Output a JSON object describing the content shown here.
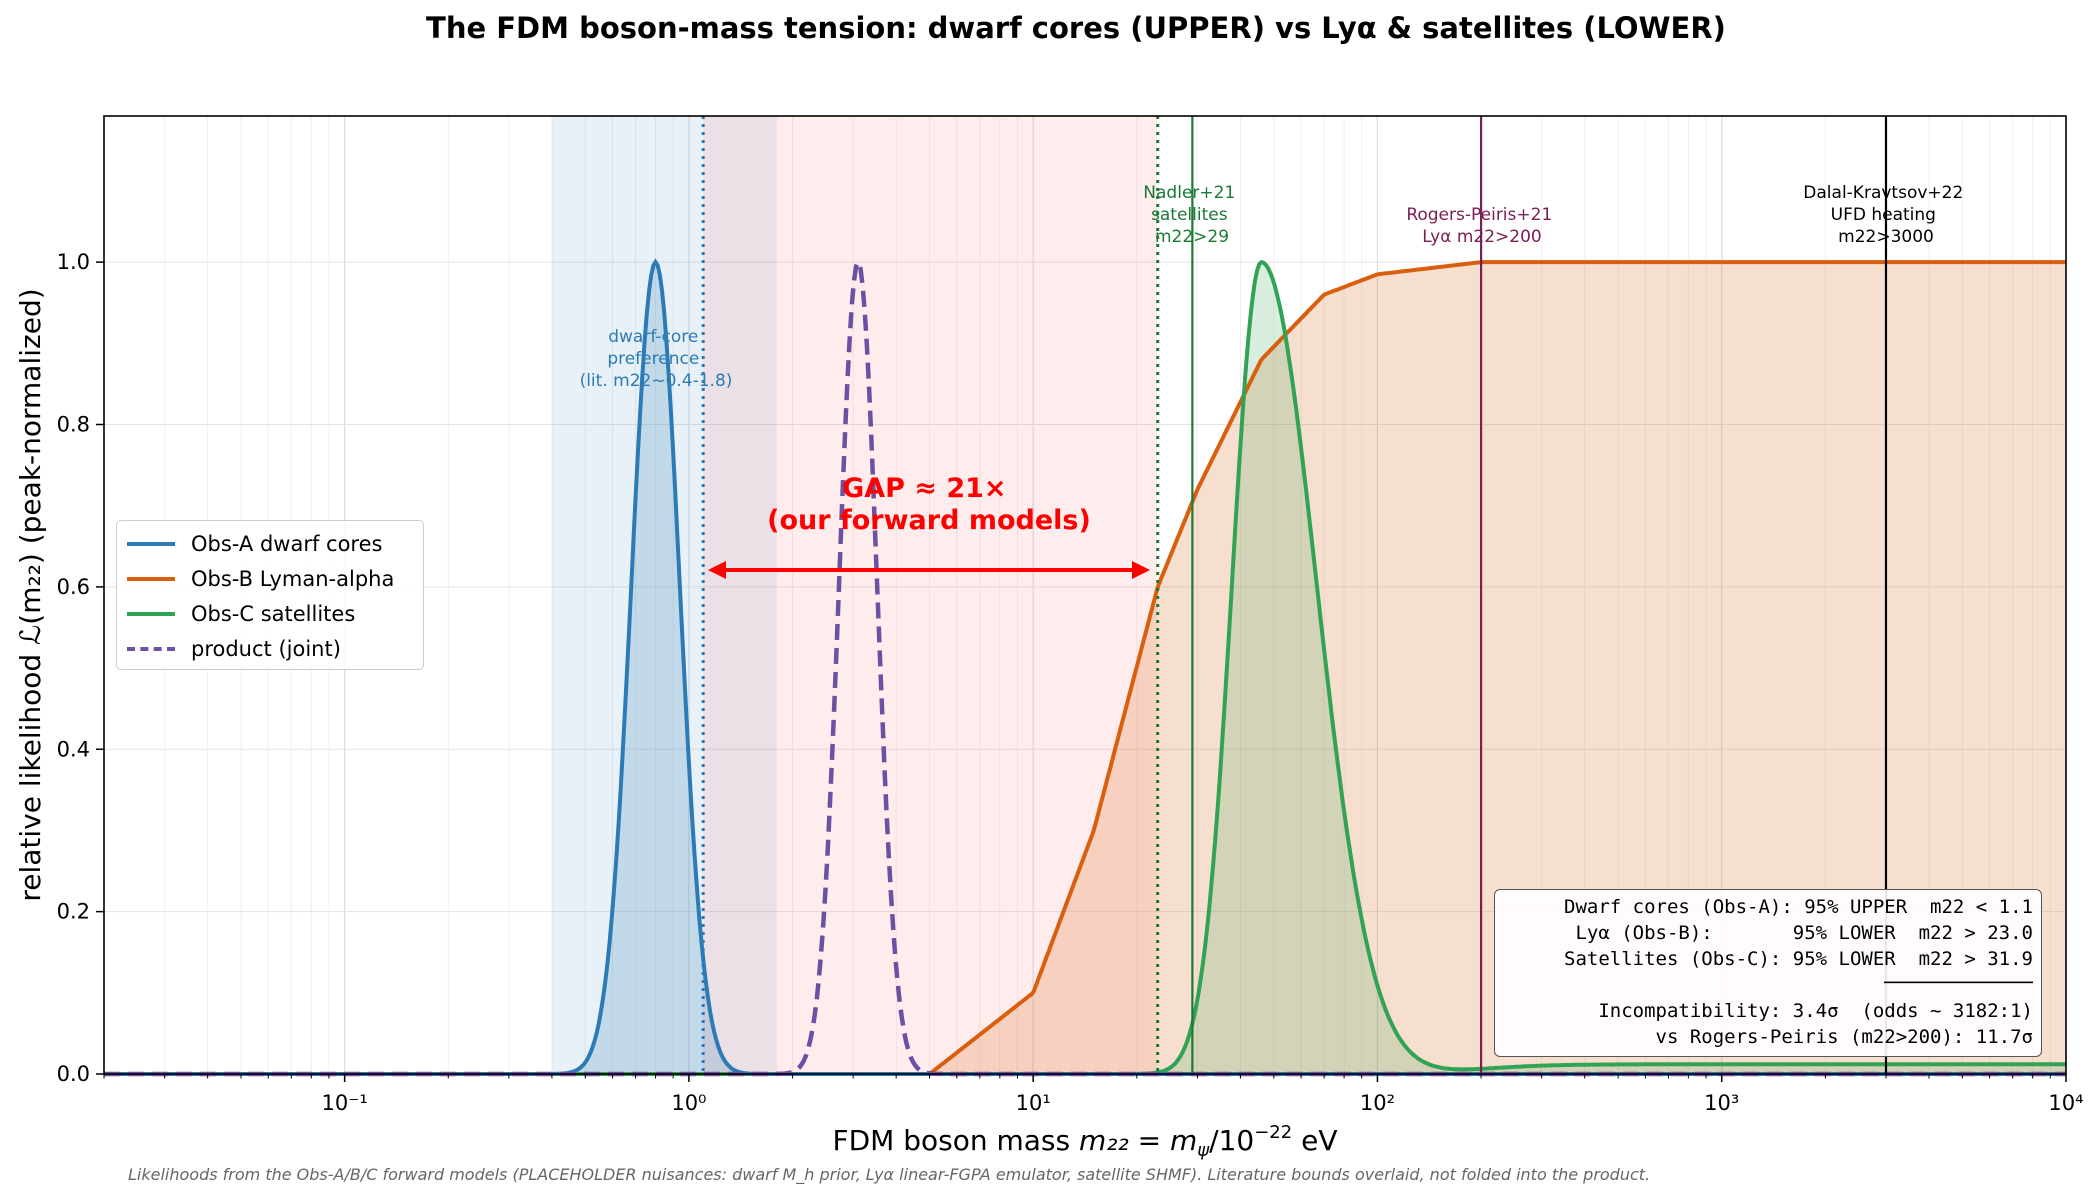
{
  "title": "The FDM boson-mass tension: dwarf cores (UPPER) vs Lyα & satellites (LOWER)",
  "footnote": "Likelihoods from the Obs-A/B/C forward models (PLACEHOLDER nuisances: dwarf M_h prior, Lyα linear-FGPA emulator, satellite SHMF). Literature bounds overlaid, not folded into the product.",
  "axes": {
    "xlabel_prefix": "FDM boson mass  ",
    "xlabel_math": "m₂₂ = m",
    "xlabel_psi": "ψ",
    "xlabel_rest": "/10",
    "xlabel_exp": "−22",
    "xlabel_unit": " eV",
    "ylabel": "relative likelihood  ℒ(m₂₂) (peak-normalized)"
  },
  "legend": [
    {
      "label": "Obs-A dwarf cores",
      "color": "#2c7bb6",
      "dash": false
    },
    {
      "label": "Obs-B Lyman-alpha",
      "color": "#d95f0e",
      "dash": false
    },
    {
      "label": "Obs-C satellites",
      "color": "#31a354",
      "dash": false
    },
    {
      "label": "product (joint)",
      "color": "#6a51a3",
      "dash": true
    }
  ],
  "annotations": {
    "dwarf_core": [
      "dwarf-core",
      "preference",
      "(lit. m22~0.4-1.8)"
    ],
    "nadler": [
      "Nadler+21",
      "satellites",
      "m22>29"
    ],
    "rogers": [
      "Rogers-Peiris+21",
      "Lyα  m22>200"
    ],
    "dalal": [
      "Dalal-Kravtsov+22",
      "UFD heating",
      "m22>3000"
    ],
    "gap": [
      "GAP ≈ 21×",
      "(our forward models)"
    ]
  },
  "stats_box": [
    "Dwarf cores (Obs-A): 95% UPPER  m22 < 1.1",
    "Lyα (Obs-B):       95% LOWER  m22 > 23.0",
    "Satellites (Obs-C): 95% LOWER  m22 > 31.9",
    "─────────────",
    "Incompatibility: 3.4σ  (odds ~ 3182:1)",
    "vs Rogers-Peiris (m22>200): 11.7σ"
  ],
  "colors": {
    "obs_a": "#2c7bb6",
    "obs_b": "#d95f0e",
    "obs_c": "#31a354",
    "joint": "#6a51a3",
    "gap": "#ff0000",
    "nadler": "#1a7a35",
    "rogers": "#7b1e56",
    "dalal": "#000000"
  },
  "chart_data": {
    "type": "line",
    "xscale": "log",
    "xlim": [
      0.02,
      10000
    ],
    "ylim": [
      0.0,
      1.18
    ],
    "x_tick_labels": [
      "10⁻¹",
      "10⁰",
      "10¹",
      "10²",
      "10³",
      "10⁴"
    ],
    "x_tick_values": [
      0.1,
      1,
      10,
      100,
      1000,
      10000
    ],
    "y_tick_labels": [
      "0.0",
      "0.2",
      "0.4",
      "0.6",
      "0.8",
      "1.0"
    ],
    "y_tick_values": [
      0.0,
      0.2,
      0.4,
      0.6,
      0.8,
      1.0
    ],
    "grid": true,
    "legend_position": "center-left",
    "series": [
      {
        "name": "Obs-A dwarf cores",
        "shape": "lognormal",
        "peak_x": 0.8,
        "log10_sigma": 0.07,
        "x_range": [
          0.4,
          1.6
        ]
      },
      {
        "name": "Obs-B Lyman-alpha",
        "shape": "rising",
        "x": [
          5,
          10,
          15,
          23,
          30,
          46,
          70,
          100,
          200,
          400,
          10000
        ],
        "y": [
          0.0,
          0.1,
          0.3,
          0.6,
          0.72,
          0.88,
          0.96,
          0.985,
          1.0,
          1.0,
          1.0
        ]
      },
      {
        "name": "Obs-C satellites",
        "shape": "skewed-peak",
        "peak_x": 46,
        "tail_value": 0.012
      },
      {
        "name": "product (joint)",
        "shape": "lognormal",
        "peak_x": 3.1,
        "log10_sigma": 0.055
      }
    ],
    "shaded_bands": [
      {
        "label": "dwarf-core preference",
        "x": [
          0.4,
          1.8
        ]
      },
      {
        "label": "gap",
        "x": [
          1.1,
          23
        ]
      }
    ],
    "dotted_lines": [
      {
        "label": "Obs-A 95% upper",
        "x": 1.1
      },
      {
        "label": "Obs-B 95% lower",
        "x": 23.0
      }
    ],
    "vertical_lines": [
      {
        "label": "Nadler+21",
        "x": 29
      },
      {
        "label": "Rogers-Peiris+21",
        "x": 200
      },
      {
        "label": "Dalal-Kravtsov+22",
        "x": 3000
      }
    ],
    "gap_arrow": {
      "x": [
        1.1,
        23
      ],
      "y": 0.62,
      "label": "GAP ≈ 21×"
    }
  }
}
